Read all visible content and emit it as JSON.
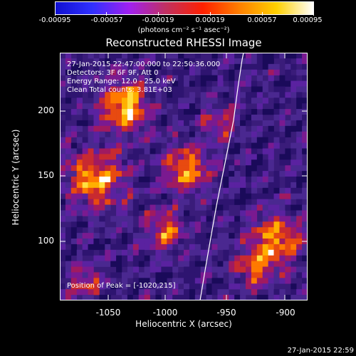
{
  "colorbar": {
    "tick_labels": [
      "-0.00095",
      "-0.00057",
      "-0.00019",
      "0.00019",
      "0.00057",
      "0.00095"
    ],
    "units_label": "(photons cm⁻² s⁻¹ asec⁻²)",
    "colors": [
      "#1010d0",
      "#3030ff",
      "#a020f0",
      "#c03060",
      "#ff2000",
      "#ff8000",
      "#ffd000",
      "#ffffff"
    ]
  },
  "plot": {
    "title": "Reconstructed RHESSI Image",
    "info_lines": [
      "27-Jan-2015 22:47:00.000 to 22:50:36.000",
      "Detectors: 3F 6F 9F, Att 0",
      "Energy Range: 12.0 - 25.0 keV",
      "Clean    Total counts: 3.81E+03"
    ],
    "peak_label": "Position of Peak = [-1020,215]",
    "xlabel": "Heliocentric X (arcsec)",
    "ylabel": "Heliocentric Y (arcsec)",
    "x_ticks": [
      "-1050",
      "-1000",
      "-950",
      "-900"
    ],
    "y_ticks": [
      "100",
      "150",
      "200"
    ],
    "limb_color": "#ffffff",
    "background_color": "#3a1c7a"
  },
  "footer": {
    "timestamp": "27-Jan-2015 22:59"
  }
}
